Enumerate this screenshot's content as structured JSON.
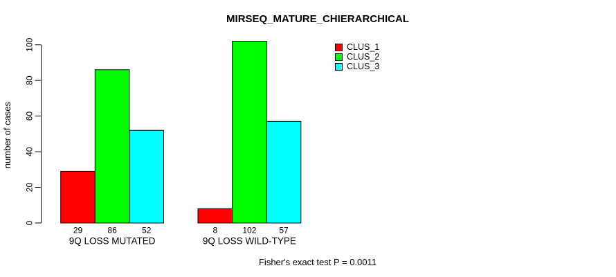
{
  "chart_data": {
    "type": "bar",
    "title": "MIRSEQ_MATURE_CHIERARCHICAL",
    "ylabel": "number of cases",
    "xlabel": "",
    "categories": [
      "9Q LOSS MUTATED",
      "9Q LOSS WILD-TYPE"
    ],
    "series": [
      {
        "name": "CLUS_1",
        "color": "#ff0000",
        "values": [
          29,
          8
        ]
      },
      {
        "name": "CLUS_2",
        "color": "#00ff00",
        "values": [
          86,
          102
        ]
      },
      {
        "name": "CLUS_3",
        "color": "#00ffff",
        "values": [
          52,
          57
        ]
      }
    ],
    "y_ticks": [
      0,
      20,
      40,
      60,
      80,
      100
    ],
    "ylim": [
      0,
      100
    ],
    "bar_value_labels": [
      [
        29,
        86,
        52
      ],
      [
        8,
        102,
        57
      ]
    ],
    "legend_position": "top-right",
    "grid": false,
    "bar_border_color": "#000000",
    "annotation": "Fisher's exact test P = 0.0011"
  }
}
